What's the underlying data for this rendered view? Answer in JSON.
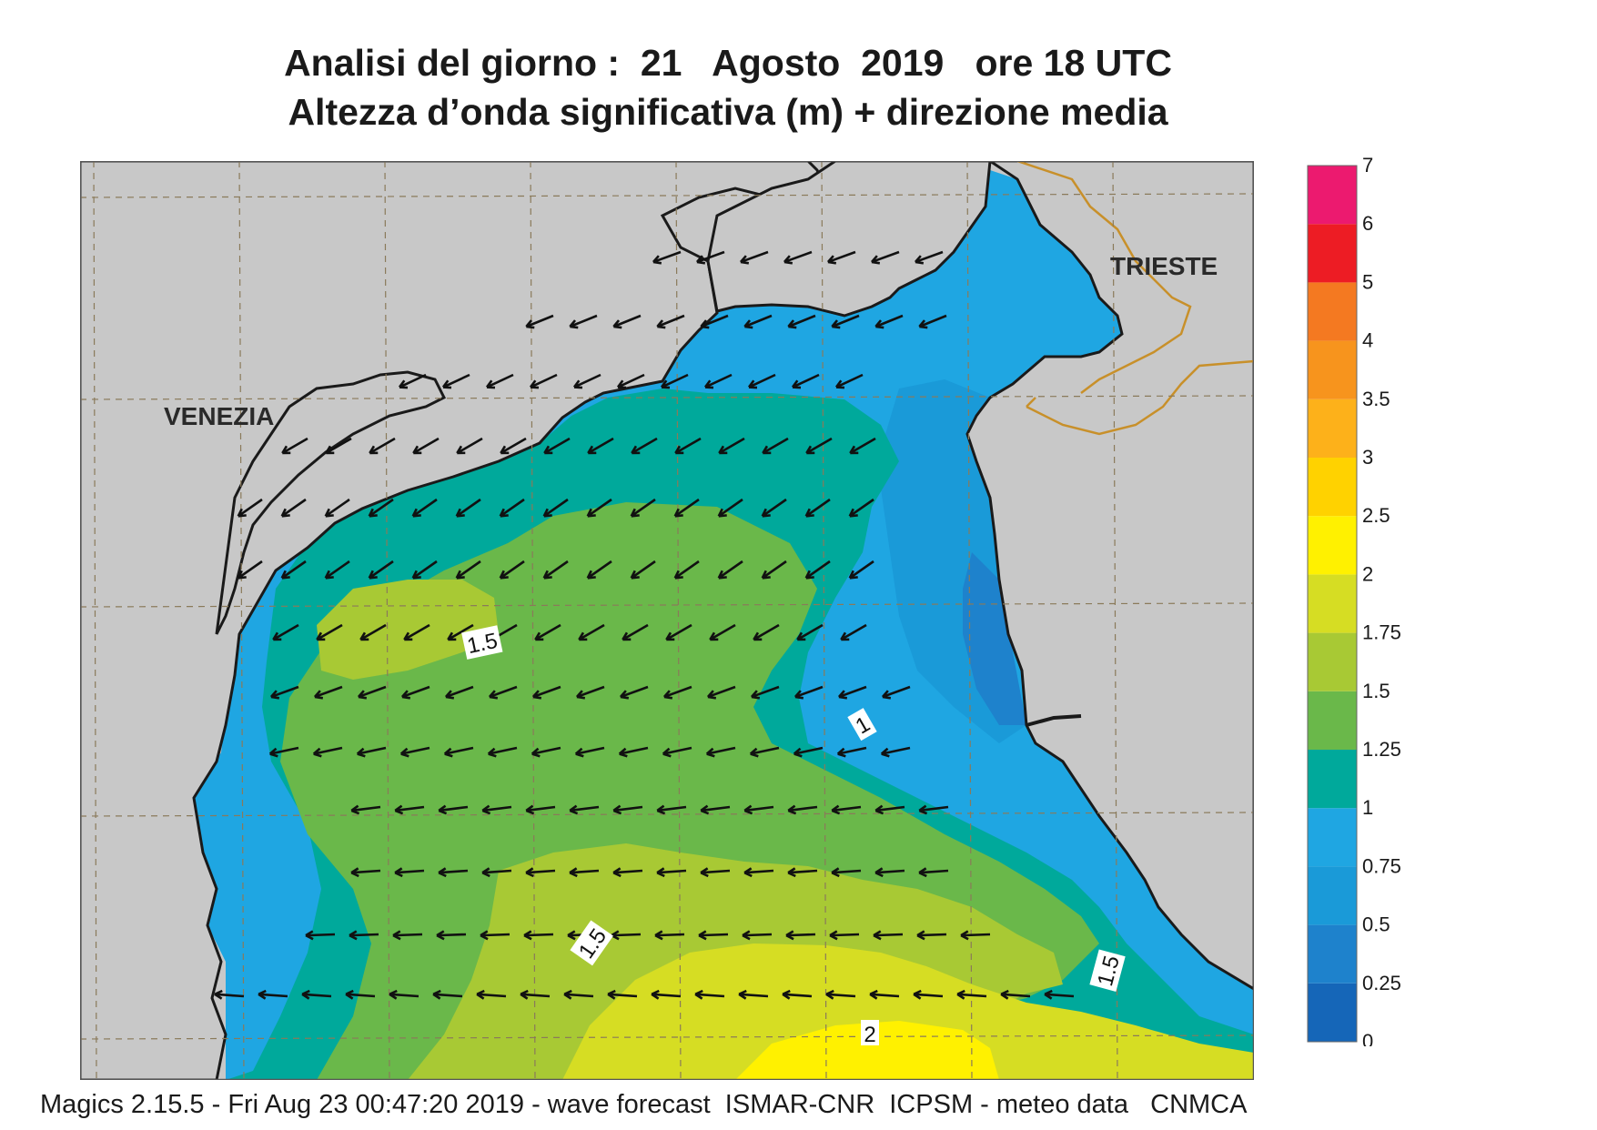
{
  "title": {
    "line1": "Analisi del giorno :  21   Agosto  2019   ore 18 UTC",
    "line2": "Altezza d’onda significativa (m) + direzione media"
  },
  "cities": {
    "venezia": "VENEZIA",
    "trieste": "TRIESTE"
  },
  "contour_labels": {
    "c15a": "1.5",
    "c1": "1",
    "c15b": "1.5",
    "c15c": "1.5",
    "c2": "2"
  },
  "legend": {
    "ticks": [
      "0",
      "0.25",
      "0.5",
      "0.75",
      "1",
      "1.25",
      "1.5",
      "1.75",
      "2",
      "2.5",
      "3",
      "3.5",
      "4",
      "5",
      "6",
      "7"
    ],
    "colors": [
      "#1566b8",
      "#1e82cc",
      "#1a9ad8",
      "#1fa6e2",
      "#00a99b",
      "#6ab84a",
      "#a8c934",
      "#d6dd23",
      "#fff100",
      "#ffd200",
      "#fdb11a",
      "#f7941d",
      "#f47921",
      "#ed1c24",
      "#ec1a6f"
    ]
  },
  "footer": "Magics 2.15.5 - Fri Aug 23 00:47:20 2019 - wave forecast  ISMAR-CNR  ICPSM - meteo data   CNMCA",
  "colors": {
    "land": "#c8c8c8",
    "coast": "#1a1a1a",
    "border": "#c8902a",
    "grid": "#8a7a5a"
  }
}
